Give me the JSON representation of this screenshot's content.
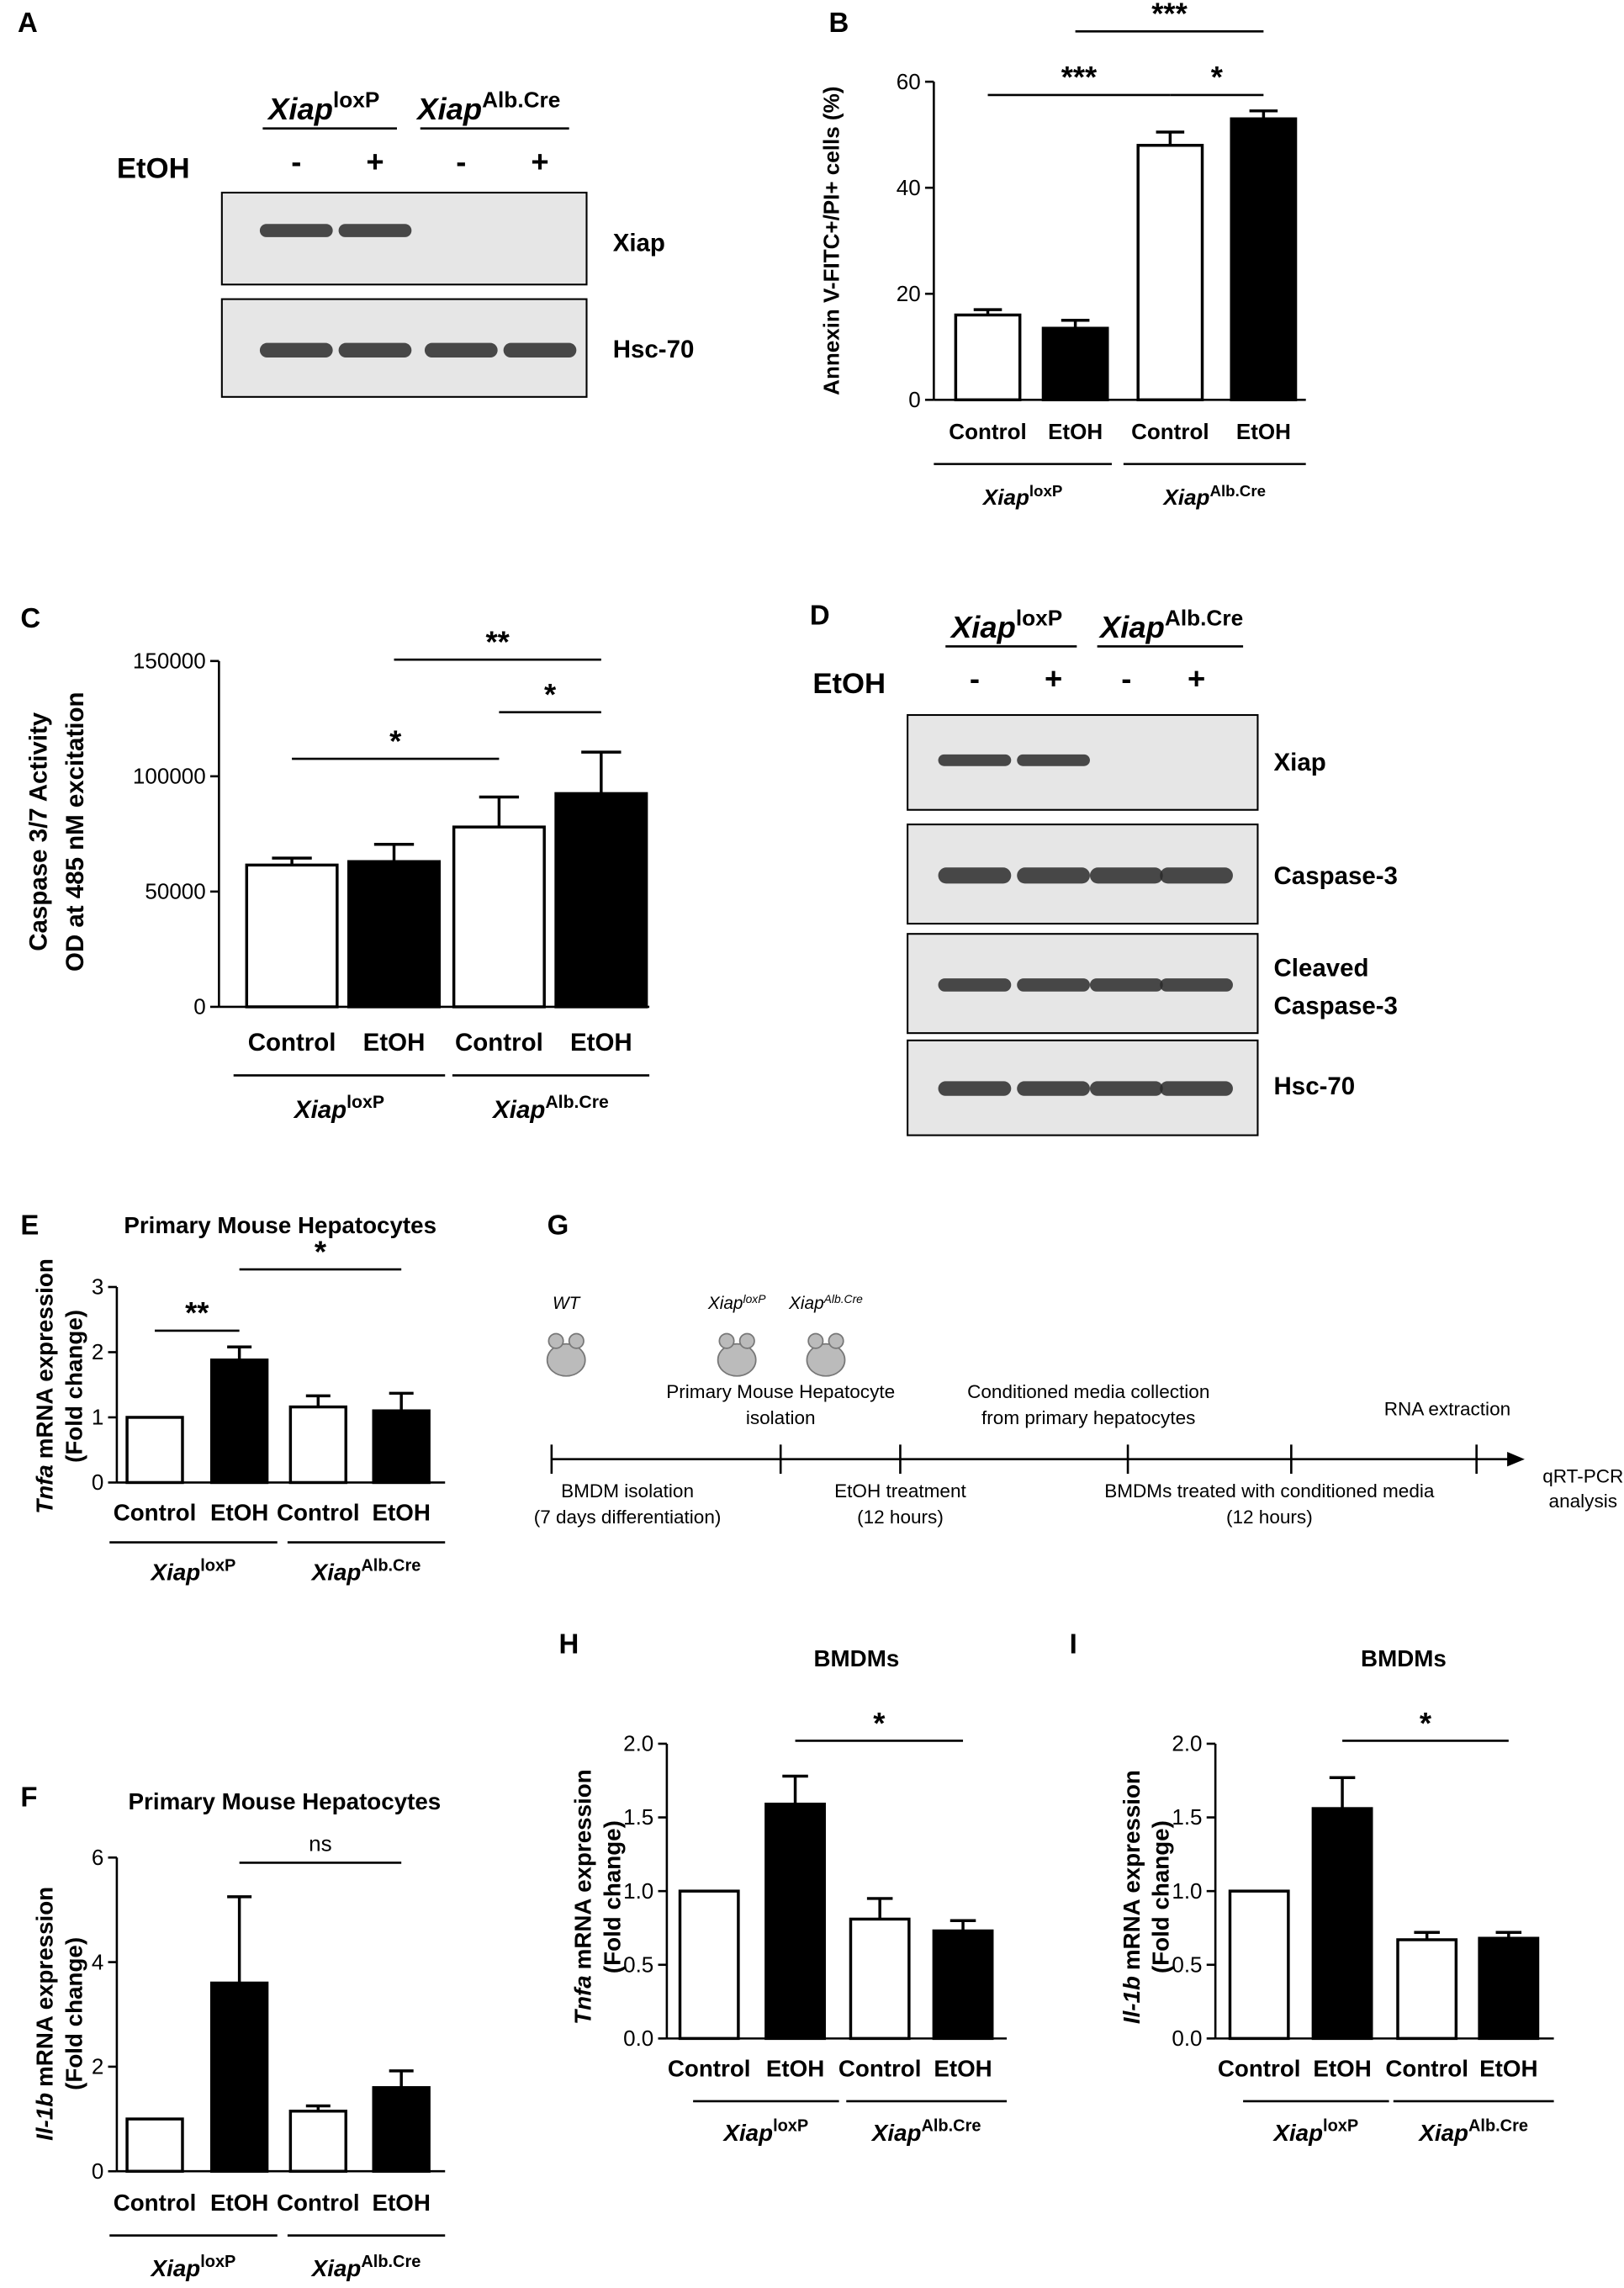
{
  "blots": [
    {
      "panel": "A",
      "genotypes": [
        {
          "name": "Xiap",
          "sup": "loxP"
        },
        {
          "name": "Xiap",
          "sup": "Alb.Cre"
        }
      ],
      "treatment": "EtOH",
      "lanes": [
        "-",
        "+",
        "-",
        "+"
      ],
      "rows": [
        [
          "Xiap"
        ],
        [
          "Hsc-70"
        ]
      ]
    },
    {
      "panel": "D",
      "genotypes": [
        {
          "name": "Xiap",
          "sup": "loxP"
        },
        {
          "name": "Xiap",
          "sup": "Alb.Cre"
        }
      ],
      "treatment": "EtOH",
      "lanes": [
        "-",
        "+",
        "-",
        "+"
      ],
      "rows": [
        [
          "Xiap"
        ],
        [
          "Caspase-3"
        ],
        [
          "Cleaved",
          "Caspase-3"
        ],
        [
          "Hsc-70"
        ]
      ]
    }
  ],
  "timeline": {
    "panel": "G",
    "mice": [
      {
        "name": "WT"
      },
      {
        "name": "Xiap",
        "sup": "loxP"
      },
      {
        "name": "Xiap",
        "sup": "Alb.Cre"
      }
    ],
    "above": [
      [
        "Primary Mouse Hepatocyte",
        "isolation"
      ],
      [
        "Conditioned media collection",
        "from primary hepatocytes"
      ],
      [
        "RNA extraction"
      ]
    ],
    "below": [
      [
        "BMDM isolation",
        "(7 days differentiation)"
      ],
      [
        "EtOH treatment",
        "(12 hours)"
      ],
      [
        "BMDMs treated with conditioned media",
        "(12 hours)"
      ]
    ],
    "end": [
      "qRT-PCR",
      "analysis"
    ]
  },
  "chart_data": [
    {
      "panel": "B",
      "type": "bar",
      "ylabel": [
        "Annexin V-FITC+/PI+ cells (%)"
      ],
      "categories": [
        "Control",
        "EtOH",
        "Control",
        "EtOH"
      ],
      "groups": [
        {
          "name": "Xiap",
          "sup": "loxP"
        },
        {
          "name": "Xiap",
          "sup": "Alb.Cre"
        }
      ],
      "values": [
        16,
        13.5,
        48,
        53
      ],
      "errors": [
        1,
        1.5,
        2.5,
        1.5
      ],
      "colors": [
        "#ffffff",
        "#000000",
        "#ffffff",
        "#000000"
      ],
      "ylim": [
        0,
        60
      ],
      "yticks": [
        0,
        20,
        40,
        60
      ],
      "brackets": [
        {
          "label": "***",
          "from": 0,
          "to": 2,
          "y": 57.5
        },
        {
          "label": "***",
          "from": 1,
          "to": 3,
          "y": 69.5
        },
        {
          "label": "*",
          "from": 2,
          "to": 3,
          "y": 57.5
        }
      ]
    },
    {
      "panel": "C",
      "type": "bar",
      "ylabel": [
        "Caspase 3/7 Activity",
        "OD at 485 nM excitation"
      ],
      "categories": [
        "Control",
        "EtOH",
        "Control",
        "EtOH"
      ],
      "groups": [
        {
          "name": "Xiap",
          "sup": "loxP"
        },
        {
          "name": "Xiap",
          "sup": "Alb.Cre"
        }
      ],
      "values": [
        61500,
        63000,
        78000,
        92500
      ],
      "errors": [
        3000,
        7500,
        13000,
        18000
      ],
      "colors": [
        "#ffffff",
        "#000000",
        "#ffffff",
        "#000000"
      ],
      "ylim": [
        0,
        150000
      ],
      "yticks": [
        0,
        50000,
        100000,
        150000
      ],
      "brackets": [
        {
          "label": "*",
          "from": 0,
          "to": 2,
          "y": 107600
        },
        {
          "label": "**",
          "from": 1,
          "to": 3,
          "y": 150600
        },
        {
          "label": "*",
          "from": 2,
          "to": 3,
          "y": 127800
        }
      ]
    },
    {
      "panel": "E",
      "type": "bar",
      "title": "Primary Mouse Hepatocytes",
      "ylabel_gene": "Tnfa",
      "ylabel": [
        "mRNA expression",
        "(Fold change)"
      ],
      "categories": [
        "Control",
        "EtOH",
        "Control",
        "EtOH"
      ],
      "groups": [
        {
          "name": "Xiap",
          "sup": "loxP"
        },
        {
          "name": "Xiap",
          "sup": "Alb.Cre"
        }
      ],
      "values": [
        1.0,
        1.88,
        1.16,
        1.1
      ],
      "errors": [
        0,
        0.2,
        0.17,
        0.27
      ],
      "colors": [
        "#ffffff",
        "#000000",
        "#ffffff",
        "#000000"
      ],
      "ylim": [
        0,
        3
      ],
      "yticks": [
        0,
        1,
        2,
        3
      ],
      "brackets": [
        {
          "label": "**",
          "from": 0,
          "to": 1,
          "y": 2.33
        },
        {
          "label": "*",
          "from": 1,
          "to": 3,
          "y": 3.27
        }
      ]
    },
    {
      "panel": "F",
      "type": "bar",
      "title": "Primary Mouse Hepatocytes",
      "ylabel_gene": "Il-1b",
      "ylabel": [
        "mRNA expression",
        "(Fold change)"
      ],
      "categories": [
        "Control",
        "EtOH",
        "Control",
        "EtOH"
      ],
      "groups": [
        {
          "name": "Xiap",
          "sup": "loxP"
        },
        {
          "name": "Xiap",
          "sup": "Alb.Cre"
        }
      ],
      "values": [
        1.0,
        3.6,
        1.15,
        1.6
      ],
      "errors": [
        0,
        1.65,
        0.1,
        0.32
      ],
      "colors": [
        "#ffffff",
        "#000000",
        "#ffffff",
        "#000000"
      ],
      "ylim": [
        0,
        6
      ],
      "yticks": [
        0,
        2,
        4,
        6
      ],
      "brackets": [
        {
          "label": "ns",
          "from": 1,
          "to": 3,
          "y": 5.9
        }
      ]
    },
    {
      "panel": "H",
      "type": "bar",
      "title": "BMDMs",
      "ylabel_gene": "Tnfa",
      "ylabel": [
        "mRNA expression",
        "(Fold change)"
      ],
      "categories": [
        "Control",
        "EtOH",
        "Control",
        "EtOH"
      ],
      "groups": [
        {
          "name": "Xiap",
          "sup": "loxP"
        },
        {
          "name": "Xiap",
          "sup": "Alb.Cre"
        }
      ],
      "values": [
        1.0,
        1.59,
        0.81,
        0.73
      ],
      "errors": [
        0,
        0.19,
        0.14,
        0.07
      ],
      "colors": [
        "#ffffff",
        "#000000",
        "#ffffff",
        "#000000"
      ],
      "ylim": [
        0,
        2
      ],
      "yticks": [
        {
          "value": 0,
          "label": "0.0"
        },
        {
          "value": 0.5,
          "label": "0.5"
        },
        {
          "value": 1,
          "label": "1.0"
        },
        {
          "value": 1.5,
          "label": "1.5"
        },
        {
          "value": 2,
          "label": "2.0"
        }
      ],
      "brackets": [
        {
          "label": "*",
          "from": 1,
          "to": 3,
          "y": 2.02
        }
      ]
    },
    {
      "panel": "I",
      "type": "bar",
      "title": "BMDMs",
      "ylabel_gene": "Il-1b",
      "ylabel": [
        "mRNA expression",
        "(Fold change)"
      ],
      "categories": [
        "Control",
        "EtOH",
        "Control",
        "EtOH"
      ],
      "groups": [
        {
          "name": "Xiap",
          "sup": "loxP"
        },
        {
          "name": "Xiap",
          "sup": "Alb.Cre"
        }
      ],
      "values": [
        1.0,
        1.56,
        0.67,
        0.68
      ],
      "errors": [
        0,
        0.21,
        0.05,
        0.04
      ],
      "colors": [
        "#ffffff",
        "#000000",
        "#ffffff",
        "#000000"
      ],
      "ylim": [
        0,
        2
      ],
      "yticks": [
        {
          "value": 0,
          "label": "0.0"
        },
        {
          "value": 0.5,
          "label": "0.5"
        },
        {
          "value": 1,
          "label": "1.0"
        },
        {
          "value": 1.5,
          "label": "1.5"
        },
        {
          "value": 2,
          "label": "2.0"
        }
      ],
      "brackets": [
        {
          "label": "*",
          "from": 1,
          "to": 3,
          "y": 2.02
        }
      ]
    }
  ]
}
